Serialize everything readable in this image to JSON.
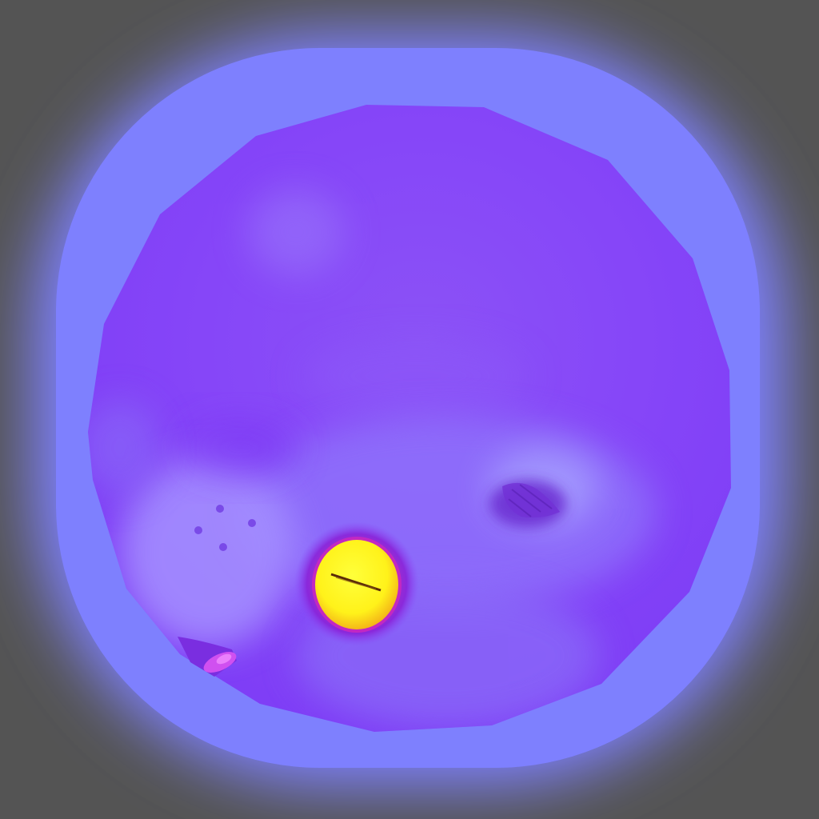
{
  "scene": {
    "view": "textured-sphere-thermal-view",
    "colors": {
      "background": "#545454",
      "halo": "#7e80fe",
      "sphere_base": "#8a4cf8",
      "sphere_light": "#9f8cff",
      "hotspot_core": "#ffff22",
      "hotspot_ring": "#9a1ec8",
      "accent_magenta": "#d050f0",
      "dark_spot": "#6a2ad0"
    },
    "icons": {
      "hotspot": "warm-spot-icon",
      "dot_cluster": "four-dot-marker-icon",
      "patch": "dark-patch-icon",
      "mark": "magenta-mark-icon"
    }
  }
}
